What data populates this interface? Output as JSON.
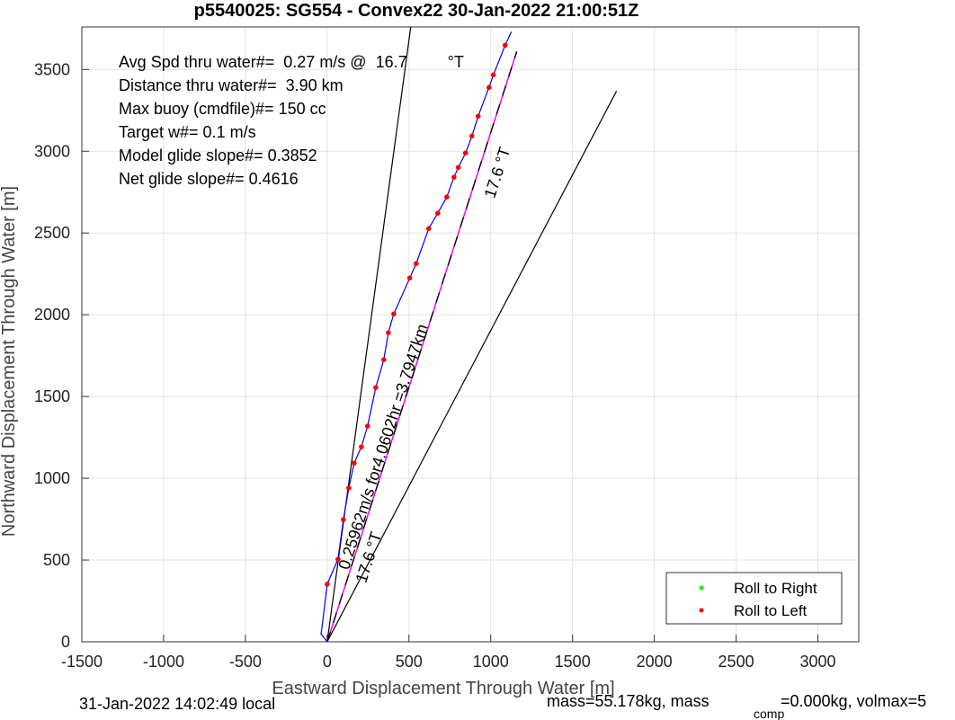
{
  "chart_data": {
    "type": "line",
    "title": "p5540025: SG554 - Convex22 30-Jan-2022 21:00:51Z",
    "xlabel": "Eastward Displacement Through Water [m]",
    "ylabel": "Northward Displacement Through Water [m]",
    "xlim": [
      -1500,
      3250
    ],
    "ylim": [
      0,
      3760
    ],
    "xticks": [
      -1500,
      -1000,
      -500,
      0,
      500,
      1000,
      1500,
      2000,
      2500,
      3000
    ],
    "yticks": [
      0,
      500,
      1000,
      1500,
      2000,
      2500,
      3000,
      3500
    ],
    "grid": true,
    "legend": "lower right",
    "series": [
      {
        "color": "#000000",
        "style": "line",
        "x": [
          0,
          511
        ],
        "y": [
          0,
          3760
        ]
      },
      {
        "color": "#000000",
        "style": "line",
        "x": [
          0,
          1769
        ],
        "y": [
          0,
          3368
        ]
      },
      {
        "color": "#ff00ff",
        "style": "dashed",
        "dash_color": "#000000",
        "x": [
          0,
          1159
        ],
        "y": [
          0,
          3610
        ]
      },
      {
        "color": "#0000ff",
        "style": "line",
        "x": [
          0,
          -38,
          -33,
          0,
          66,
          99,
          132,
          165,
          209,
          247,
          297,
          346,
          374,
          407,
          505,
          544,
          621,
          676,
          731,
          775,
          802,
          846,
          885,
          923,
          989,
          1016,
          1088,
          1126
        ],
        "y": [
          0,
          49,
          77,
          352,
          505,
          747,
          940,
          1093,
          1192,
          1319,
          1555,
          1725,
          1890,
          2005,
          2225,
          2313,
          2527,
          2621,
          2720,
          2841,
          2901,
          2989,
          3093,
          3214,
          3390,
          3467,
          3648,
          3731
        ]
      },
      {
        "name": "Roll to Right",
        "color": "#00ff00",
        "style": "dot",
        "x": [],
        "y": []
      },
      {
        "name": "Roll to Left",
        "color": "#ff0000",
        "style": "dot",
        "x": [
          0,
          66,
          99,
          132,
          165,
          209,
          247,
          297,
          346,
          374,
          407,
          505,
          544,
          621,
          676,
          731,
          775,
          802,
          846,
          885,
          923,
          989,
          1016,
          1088
        ],
        "y": [
          352,
          505,
          747,
          940,
          1093,
          1192,
          1319,
          1555,
          1725,
          1890,
          2005,
          2225,
          2313,
          2527,
          2621,
          2720,
          2841,
          2901,
          2989,
          3093,
          3214,
          3390,
          3467,
          3648
        ]
      }
    ],
    "annotations": [
      "Avg Spd thru water#=  0.27 m/s @  16.7         °T",
      "Distance thru water#=  3.90 km",
      "Max buoy (cmdfile)#= 150 cc",
      "Target w#= 0.1 m/s",
      "Model glide slope#= 0.3852",
      "Net glide slope#= 0.4616",
      "17.6 °T",
      "0.25962m/s for4.0602hr =3.7947km",
      "17.6 °T"
    ],
    "footer": [
      "31-Jan-2022 14:02:49 local",
      "mass=55.178kg, mass",
      "comp",
      "=0.000kg, volmax=5"
    ]
  }
}
